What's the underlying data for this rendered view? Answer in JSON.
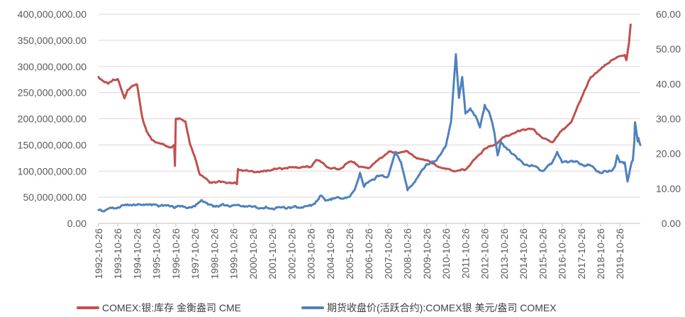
{
  "chart_data": {
    "type": "line",
    "title": "",
    "xlabel": "",
    "ylabel_left": "",
    "ylabel_right": "",
    "categories": [
      "1992-10-26",
      "1993-10-26",
      "1994-10-26",
      "1995-10-26",
      "1996-10-26",
      "1997-10-26",
      "1998-10-26",
      "1999-10-26",
      "2000-10-26",
      "2001-10-26",
      "2002-10-26",
      "2003-10-26",
      "2004-10-26",
      "2005-10-26",
      "2006-10-26",
      "2007-10-26",
      "2008-10-26",
      "2009-10-26",
      "2010-10-26",
      "2011-10-26",
      "2012-10-26",
      "2013-10-26",
      "2014-10-26",
      "2015-10-26",
      "2016-10-26",
      "2017-10-26",
      "2018-10-26",
      "2019-10-26"
    ],
    "y_left_ticks": [
      "0.00",
      "50,000,000.00",
      "100,000,000.00",
      "150,000,000.00",
      "200,000,000.00",
      "250,000,000.00",
      "300,000,000.00",
      "350,000,000.00",
      "400,000,000.00"
    ],
    "y_left_range": [
      0,
      400000000
    ],
    "y_right_ticks": [
      "0.00",
      "10.00",
      "20.00",
      "30.00",
      "40.00",
      "50.00",
      "60.00"
    ],
    "y_right_range": [
      0,
      60
    ],
    "grid": "horizontal",
    "legend_position": "bottom",
    "series": [
      {
        "name": "COMEX:银:库存 金衡盎司 CME",
        "axis": "left",
        "color": "#c0504d",
        "points": [
          [
            "1992-10-26",
            280000000
          ],
          [
            "1993-01-26",
            272000000
          ],
          [
            "1993-04-26",
            267000000
          ],
          [
            "1993-07-26",
            275000000
          ],
          [
            "1993-10-26",
            276000000
          ],
          [
            "1994-01-26",
            248000000
          ],
          [
            "1994-02-26",
            239000000
          ],
          [
            "1994-04-26",
            255000000
          ],
          [
            "1994-07-26",
            263000000
          ],
          [
            "1994-10-26",
            265000000
          ],
          [
            "1995-01-26",
            205000000
          ],
          [
            "1995-04-26",
            175000000
          ],
          [
            "1995-07-26",
            160000000
          ],
          [
            "1995-10-26",
            155000000
          ],
          [
            "1996-01-26",
            152000000
          ],
          [
            "1996-04-26",
            148000000
          ],
          [
            "1996-07-26",
            145000000
          ],
          [
            "1996-09-26",
            150000000
          ],
          [
            "1996-10-10",
            110000000
          ],
          [
            "1996-10-26",
            200000000
          ],
          [
            "1997-02-26",
            198000000
          ],
          [
            "1997-04-26",
            195000000
          ],
          [
            "1997-07-26",
            150000000
          ],
          [
            "1997-10-26",
            125000000
          ],
          [
            "1998-01-26",
            93000000
          ],
          [
            "1998-04-26",
            87000000
          ],
          [
            "1998-07-26",
            78000000
          ],
          [
            "1998-10-26",
            79000000
          ],
          [
            "1999-04-26",
            79000000
          ],
          [
            "1999-10-26",
            77000000
          ],
          [
            "1999-12-26",
            75000000
          ],
          [
            "2000-01-15",
            104000000
          ],
          [
            "2000-04-26",
            101000000
          ],
          [
            "2000-10-26",
            99000000
          ],
          [
            "2001-04-26",
            99000000
          ],
          [
            "2001-10-26",
            103000000
          ],
          [
            "2002-10-26",
            107000000
          ],
          [
            "2003-10-26",
            108000000
          ],
          [
            "2004-01-26",
            121000000
          ],
          [
            "2004-04-26",
            118000000
          ],
          [
            "2004-10-26",
            105000000
          ],
          [
            "2005-04-26",
            104000000
          ],
          [
            "2005-10-26",
            118000000
          ],
          [
            "2006-01-26",
            117000000
          ],
          [
            "2006-04-26",
            108000000
          ],
          [
            "2006-10-26",
            106000000
          ],
          [
            "2007-04-26",
            122000000
          ],
          [
            "2007-10-26",
            136000000
          ],
          [
            "2008-04-26",
            135000000
          ],
          [
            "2008-10-26",
            138000000
          ],
          [
            "2009-04-26",
            124000000
          ],
          [
            "2009-10-26",
            121000000
          ],
          [
            "2010-04-26",
            110000000
          ],
          [
            "2010-10-26",
            104000000
          ],
          [
            "2011-04-26",
            100000000
          ],
          [
            "2011-10-26",
            103000000
          ],
          [
            "2012-04-26",
            123000000
          ],
          [
            "2012-10-26",
            143000000
          ],
          [
            "2013-04-26",
            150000000
          ],
          [
            "2013-10-26",
            165000000
          ],
          [
            "2014-04-26",
            172000000
          ],
          [
            "2014-10-26",
            180000000
          ],
          [
            "2015-04-26",
            180000000
          ],
          [
            "2015-10-26",
            163000000
          ],
          [
            "2016-04-26",
            155000000
          ],
          [
            "2016-10-26",
            178000000
          ],
          [
            "2017-04-26",
            195000000
          ],
          [
            "2017-10-26",
            240000000
          ],
          [
            "2018-04-26",
            280000000
          ],
          [
            "2018-10-26",
            295000000
          ],
          [
            "2019-04-26",
            310000000
          ],
          [
            "2019-10-26",
            320000000
          ],
          [
            "2020-01-26",
            322000000
          ],
          [
            "2020-02-26",
            312000000
          ],
          [
            "2020-04-15",
            345000000
          ],
          [
            "2020-05-15",
            380000000
          ]
        ]
      },
      {
        "name": "期货收盘价(活跃合约):COMEX银 美元/盎司 COMEX",
        "axis": "right",
        "color": "#4f81bd",
        "points": [
          [
            "1992-10-26",
            3.8
          ],
          [
            "1993-02-26",
            3.7
          ],
          [
            "1993-06-26",
            4.4
          ],
          [
            "1993-10-26",
            4.6
          ],
          [
            "1994-02-26",
            5.2
          ],
          [
            "1994-06-26",
            5.3
          ],
          [
            "1994-10-26",
            5.3
          ],
          [
            "1995-04-26",
            5.5
          ],
          [
            "1995-07-26",
            5.2
          ],
          [
            "1995-10-26",
            5.3
          ],
          [
            "1996-04-26",
            5.1
          ],
          [
            "1996-10-26",
            4.8
          ],
          [
            "1997-04-26",
            4.6
          ],
          [
            "1997-10-26",
            4.9
          ],
          [
            "1998-02-26",
            6.7
          ],
          [
            "1998-06-26",
            5.4
          ],
          [
            "1998-10-26",
            5.0
          ],
          [
            "1999-04-26",
            5.2
          ],
          [
            "1999-10-26",
            5.2
          ],
          [
            "2000-04-26",
            5.0
          ],
          [
            "2000-10-26",
            4.8
          ],
          [
            "2001-04-26",
            4.4
          ],
          [
            "2001-10-26",
            4.3
          ],
          [
            "2002-04-26",
            4.6
          ],
          [
            "2002-10-26",
            4.6
          ],
          [
            "2003-04-26",
            4.6
          ],
          [
            "2003-10-26",
            5.0
          ],
          [
            "2004-01-26",
            6.2
          ],
          [
            "2004-04-26",
            8.0
          ],
          [
            "2004-07-26",
            6.5
          ],
          [
            "2004-10-26",
            7.0
          ],
          [
            "2005-04-26",
            7.2
          ],
          [
            "2005-10-26",
            7.6
          ],
          [
            "2006-01-26",
            9.5
          ],
          [
            "2006-05-10",
            14.5
          ],
          [
            "2006-07-26",
            10.5
          ],
          [
            "2006-10-26",
            12.0
          ],
          [
            "2007-04-26",
            13.5
          ],
          [
            "2007-10-26",
            13.5
          ],
          [
            "2008-03-15",
            20.5
          ],
          [
            "2008-06-26",
            17.5
          ],
          [
            "2008-10-26",
            9.5
          ],
          [
            "2009-04-26",
            13.0
          ],
          [
            "2009-10-26",
            17.0
          ],
          [
            "2010-04-26",
            18.0
          ],
          [
            "2010-10-26",
            22.5
          ],
          [
            "2011-01-26",
            29.0
          ],
          [
            "2011-04-28",
            48.5
          ],
          [
            "2011-06-26",
            36.0
          ],
          [
            "2011-08-26",
            42.0
          ],
          [
            "2011-10-26",
            31.5
          ],
          [
            "2012-01-26",
            33.0
          ],
          [
            "2012-04-26",
            31.0
          ],
          [
            "2012-07-26",
            27.5
          ],
          [
            "2012-10-26",
            34.0
          ],
          [
            "2013-01-26",
            31.5
          ],
          [
            "2013-04-26",
            26.0
          ],
          [
            "2013-06-26",
            19.5
          ],
          [
            "2013-08-26",
            23.5
          ],
          [
            "2013-10-26",
            22.0
          ],
          [
            "2014-04-26",
            19.8
          ],
          [
            "2014-10-26",
            17.0
          ],
          [
            "2015-04-26",
            16.5
          ],
          [
            "2015-10-26",
            15.0
          ],
          [
            "2016-04-26",
            17.5
          ],
          [
            "2016-07-26",
            20.5
          ],
          [
            "2016-10-26",
            17.5
          ],
          [
            "2017-04-26",
            18.0
          ],
          [
            "2017-10-26",
            17.0
          ],
          [
            "2018-04-26",
            16.5
          ],
          [
            "2018-10-26",
            14.5
          ],
          [
            "2019-04-26",
            15.0
          ],
          [
            "2019-07-26",
            16.5
          ],
          [
            "2019-09-04",
            19.5
          ],
          [
            "2019-10-26",
            17.5
          ],
          [
            "2020-01-26",
            17.5
          ],
          [
            "2020-03-18",
            12.0
          ],
          [
            "2020-05-26",
            17.0
          ],
          [
            "2020-06-26",
            18.0
          ],
          [
            "2020-07-26",
            23.5
          ],
          [
            "2020-08-07",
            29.0
          ],
          [
            "2020-09-26",
            23.5
          ],
          [
            "2020-10-10",
            24.5
          ],
          [
            "2020-11-15",
            22.5
          ]
        ]
      }
    ]
  }
}
